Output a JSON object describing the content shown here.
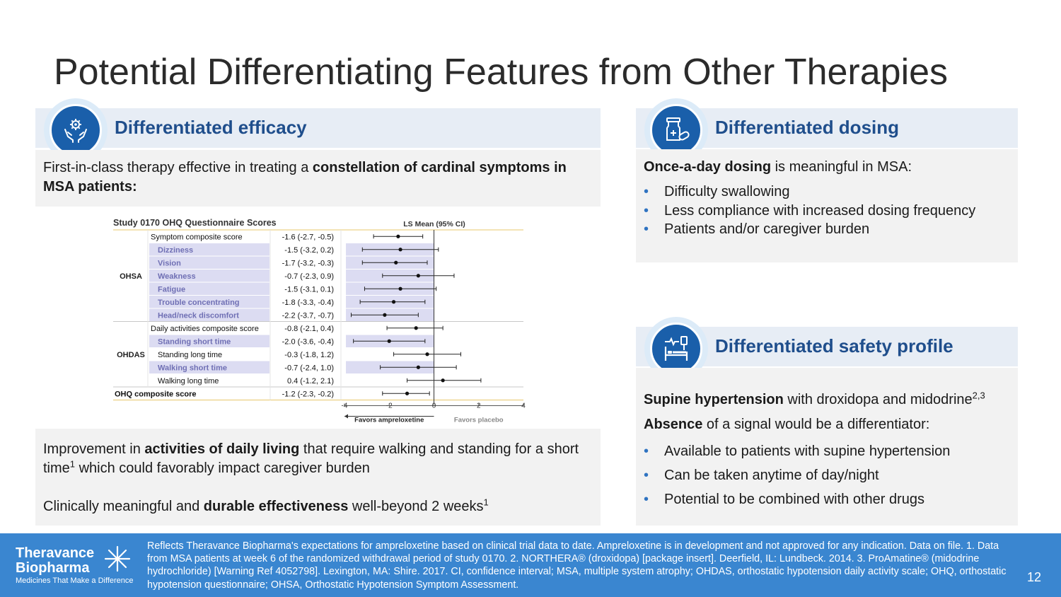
{
  "slide": {
    "title": "Potential Differentiating Features from Other Therapies",
    "page_number": "12"
  },
  "efficacy": {
    "icon": "hands-gear-icon",
    "heading": "Differentiated efficacy",
    "intro_plain": "First-in-class therapy effective in treating a ",
    "intro_bold": "constellation of cardinal symptoms in MSA patients:",
    "adl_pre": "Improvement in ",
    "adl_bold": "activities of daily living",
    "adl_post": " that require walking and standing for a short time",
    "adl_sup": "1",
    "adl_tail": " which could favorably impact caregiver burden",
    "durable_pre": "Clinically meaningful and ",
    "durable_bold": "durable effectiveness",
    "durable_post": " well-beyond 2 weeks",
    "durable_sup": "1"
  },
  "dosing": {
    "icon": "pill-bottle-icon",
    "heading": "Differentiated dosing",
    "lead_bold": "Once-a-day dosing",
    "lead_rest": " is meaningful in MSA:",
    "bullets": [
      "Difficulty swallowing",
      "Less compliance with increased dosing frequency",
      "Patients and/or caregiver burden"
    ]
  },
  "safety": {
    "icon": "hospital-bed-icon",
    "heading": "Differentiated safety profile",
    "line1_bold": "Supine hypertension",
    "line1_rest": " with droxidopa and midodrine",
    "line1_sup": "2,3",
    "line2_bold": "Absence",
    "line2_rest": " of a signal would be a differentiator:",
    "bullets": [
      "Available to patients with supine hypertension",
      "Can be taken anytime of day/night",
      "Potential to be combined with other drugs"
    ]
  },
  "footer": {
    "logo_line1": "Theravance",
    "logo_line2": "Biopharma",
    "tagline": "Medicines That Make a Difference",
    "disclaimer": "Reflects Theravance Biopharma's expectations for ampreloxetine based on clinical trial data to date. Ampreloxetine is in development and not approved for any indication. Data on file. 1. Data from MSA patients at week 6 of the randomized withdrawal period of study 0170.  2. NORTHERA® (droxidopa) [package insert]. Deerfield, IL: Lundbeck. 2014.  3. ProAmatine® (midodrine hydrochloride) [Warning Ref 4052798]. Lexington, MA: Shire. 2017.  CI, confidence interval; MSA, multiple system atrophy; OHDAS, orthostatic hypotension daily activity scale; OHQ, orthostatic hypotension questionnaire; OHSA, Orthostatic Hypotension Symptom Assessment."
  },
  "colors": {
    "accent_blue": "#1f4e8c",
    "badge_blue": "#1a5faa",
    "footer_blue": "#3a86d0",
    "row_highlight": "#dcdcf2",
    "highlight_text": "#6f6fb4"
  },
  "chart_data": {
    "type": "forest",
    "title": "Study 0170 OHQ Questionnaire Scores",
    "column_header": "LS Mean (95% CI)",
    "xlim": [
      -4,
      4
    ],
    "xticks": [
      -4,
      -2,
      0,
      2,
      4
    ],
    "xlabel_left": "Favors ampreloxetine",
    "xlabel_right": "Favors placebo",
    "reference_line": 0,
    "groups": [
      {
        "name": "OHSA",
        "rows": [
          0,
          1,
          2,
          3,
          4,
          5,
          6
        ]
      },
      {
        "name": "OHDAS",
        "rows": [
          7,
          8,
          9,
          10,
          11
        ]
      }
    ],
    "rows": [
      {
        "label": "Symptom composite score",
        "text": "-1.6 (-2.7, -0.5)",
        "mean": -1.6,
        "lo": -2.7,
        "hi": -0.5,
        "highlight": false,
        "bold": false
      },
      {
        "label": "Dizziness",
        "text": "-1.5 (-3.2, 0.2)",
        "mean": -1.5,
        "lo": -3.2,
        "hi": 0.2,
        "highlight": true,
        "bold": false
      },
      {
        "label": "Vision",
        "text": "-1.7 (-3.2, -0.3)",
        "mean": -1.7,
        "lo": -3.2,
        "hi": -0.3,
        "highlight": true,
        "bold": false
      },
      {
        "label": "Weakness",
        "text": "-0.7 (-2.3, 0.9)",
        "mean": -0.7,
        "lo": -2.3,
        "hi": 0.9,
        "highlight": true,
        "bold": false
      },
      {
        "label": "Fatigue",
        "text": "-1.5 (-3.1, 0.1)",
        "mean": -1.5,
        "lo": -3.1,
        "hi": 0.1,
        "highlight": true,
        "bold": false
      },
      {
        "label": "Trouble concentrating",
        "text": "-1.8 (-3.3, -0.4)",
        "mean": -1.8,
        "lo": -3.3,
        "hi": -0.4,
        "highlight": true,
        "bold": false
      },
      {
        "label": "Head/neck discomfort",
        "text": "-2.2 (-3.7, -0.7)",
        "mean": -2.2,
        "lo": -3.7,
        "hi": -0.7,
        "highlight": true,
        "bold": false
      },
      {
        "label": "Daily activities composite score",
        "text": "-0.8 (-2.1, 0.4)",
        "mean": -0.8,
        "lo": -2.1,
        "hi": 0.4,
        "highlight": false,
        "bold": false
      },
      {
        "label": "Standing short time",
        "text": "-2.0 (-3.6, -0.4)",
        "mean": -2.0,
        "lo": -3.6,
        "hi": -0.4,
        "highlight": true,
        "bold": false
      },
      {
        "label": "Standing long time",
        "text": "-0.3 (-1.8, 1.2)",
        "mean": -0.3,
        "lo": -1.8,
        "hi": 1.2,
        "highlight": false,
        "bold": false
      },
      {
        "label": "Walking short time",
        "text": "-0.7 (-2.4, 1.0)",
        "mean": -0.7,
        "lo": -2.4,
        "hi": 1.0,
        "highlight": true,
        "bold": false
      },
      {
        "label": "Walking long time",
        "text": "0.4 (-1.2, 2.1)",
        "mean": 0.4,
        "lo": -1.2,
        "hi": 2.1,
        "highlight": false,
        "bold": false
      },
      {
        "label": "OHQ composite score",
        "text": "-1.2 (-2.3, -0.2)",
        "mean": -1.2,
        "lo": -2.3,
        "hi": -0.2,
        "highlight": false,
        "bold": true
      }
    ]
  }
}
